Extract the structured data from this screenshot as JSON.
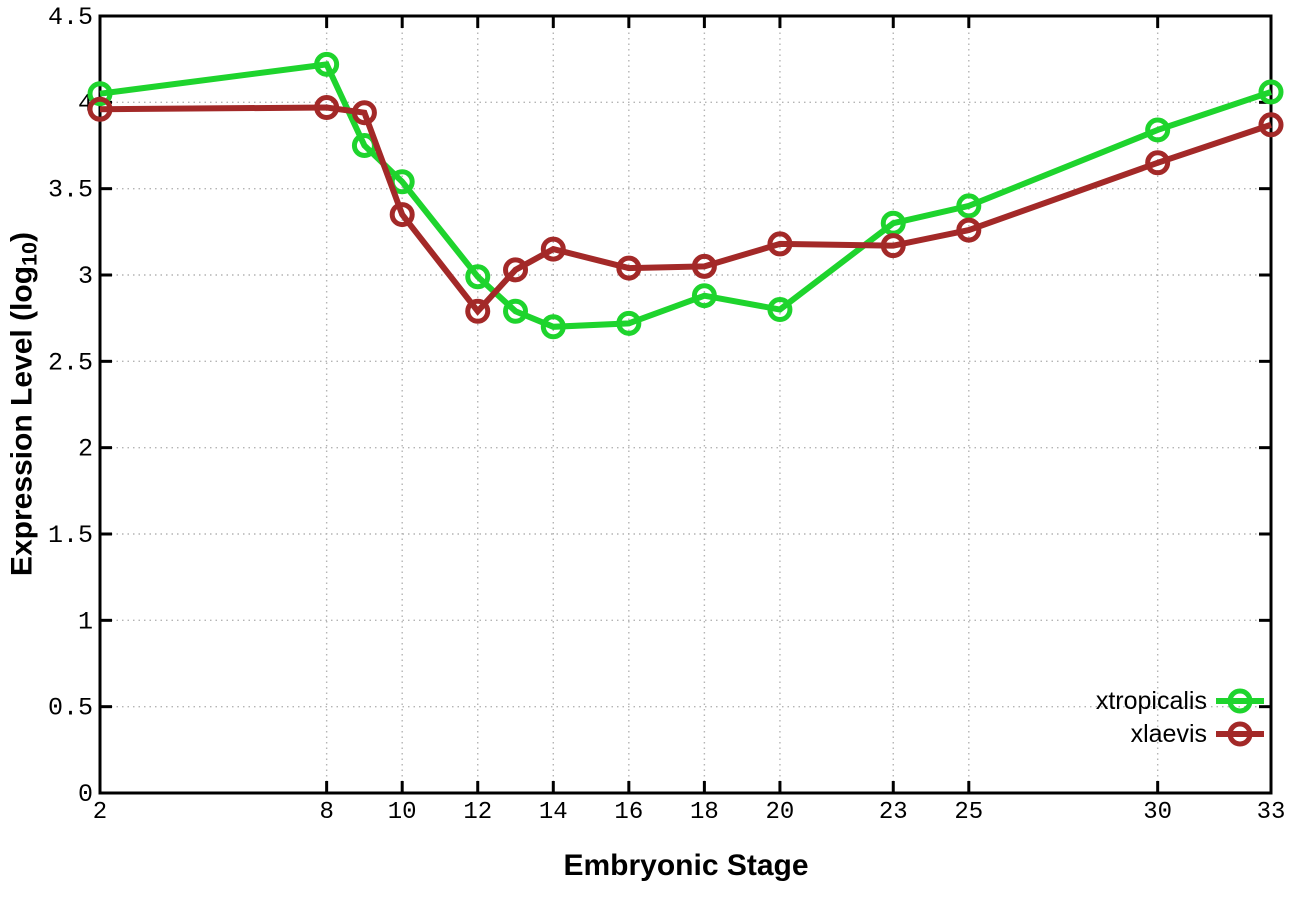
{
  "chart_data": {
    "type": "line",
    "title": "",
    "xlabel": "Embryonic Stage",
    "ylabel": "Expression Level (log10)",
    "ylabel_parts": {
      "prefix": "Expression Level (log",
      "sub": "10",
      "suffix": ")"
    },
    "x": [
      2,
      8,
      9,
      10,
      12,
      13,
      14,
      16,
      18,
      20,
      23,
      25,
      30,
      33
    ],
    "series": [
      {
        "name": "xtropicalis",
        "color": "#1ed42d",
        "values": [
          4.05,
          4.22,
          3.75,
          3.54,
          2.99,
          2.79,
          2.7,
          2.72,
          2.88,
          2.8,
          3.3,
          3.4,
          3.84,
          4.06
        ]
      },
      {
        "name": "xlaevis",
        "color": "#a32928",
        "values": [
          3.96,
          3.97,
          3.94,
          3.35,
          2.79,
          3.03,
          3.15,
          3.04,
          3.05,
          3.18,
          3.17,
          3.26,
          3.65,
          3.87
        ]
      }
    ],
    "x_ticks": [
      2,
      8,
      10,
      12,
      14,
      16,
      18,
      20,
      23,
      25,
      30,
      33
    ],
    "y_ticks": [
      0,
      0.5,
      1,
      1.5,
      2,
      2.5,
      3,
      3.5,
      4,
      4.5
    ],
    "xlim": [
      2,
      33
    ],
    "ylim": [
      0,
      4.5
    ],
    "grid": true,
    "legend_position": "bottom-right",
    "axis_color": "#000000",
    "grid_color": "#b4b4b4",
    "background_color": "#ffffff"
  }
}
